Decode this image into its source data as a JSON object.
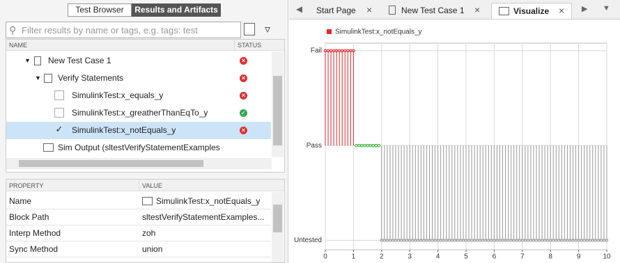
{
  "left": {
    "tabs": [
      "Test Browser",
      "Results and Artifacts"
    ],
    "search_placeholder": "Filter results by name or tags, e.g. tags: test",
    "tree": {
      "columns": [
        "NAME",
        "STATUS"
      ],
      "rows": [
        "New Test Case 1",
        "Verify Statements",
        "SimulinkTest:x_equals_y",
        "SimulinkTest:x_greatherThanEqTo_y",
        "SimulinkTest:x_notEquals_y",
        "Sim Output (sltestVerifyStatementExamples"
      ]
    },
    "properties": {
      "columns": [
        "PROPERTY",
        "VALUE"
      ],
      "rows": [
        [
          "Name",
          "SimulinkTest:x_notEquals_y"
        ],
        [
          "Block Path",
          "sltestVerifyStatementExamples..."
        ],
        [
          "Interp Method",
          "zoh"
        ],
        [
          "Sync Method",
          "union"
        ]
      ]
    }
  },
  "right": {
    "tabs": [
      "Start Page",
      "New Test Case 1",
      "Visualize"
    ]
  },
  "chart_data": {
    "type": "stem",
    "baseline": 1,
    "series": [
      {
        "name": "SimulinkTest:x_notEquals_y",
        "color": "#e8262b",
        "x": [
          0,
          0.1,
          0.2,
          0.3,
          0.4,
          0.5,
          0.6,
          0.7,
          0.8,
          0.9,
          1
        ],
        "values": [
          2,
          2,
          2,
          2,
          2,
          2,
          2,
          2,
          2,
          2,
          2
        ]
      },
      {
        "color": "#2db52d",
        "x": [
          1.1,
          1.2,
          1.3,
          1.4,
          1.5,
          1.6,
          1.7,
          1.8,
          1.9
        ],
        "values": [
          1,
          1,
          1,
          1,
          1,
          1,
          1,
          1,
          1
        ]
      },
      {
        "color": "#9a9a9a",
        "x": [
          2,
          2.1,
          2.2,
          2.3,
          2.4,
          2.5,
          2.6,
          2.7,
          2.8,
          2.9,
          3,
          3.1,
          3.2,
          3.3,
          3.4,
          3.5,
          3.6,
          3.7,
          3.8,
          3.9,
          4,
          4.1,
          4.2,
          4.3,
          4.4,
          4.5,
          4.6,
          4.7,
          4.8,
          4.9,
          5,
          5.1,
          5.2,
          5.3,
          5.4,
          5.5,
          5.6,
          5.7,
          5.8,
          5.9,
          6,
          6.1,
          6.2,
          6.3,
          6.4,
          6.5,
          6.6,
          6.7,
          6.8,
          6.9,
          7,
          7.1,
          7.2,
          7.3,
          7.4,
          7.5,
          7.6,
          7.7,
          7.8,
          7.9,
          8,
          8.1,
          8.2,
          8.3,
          8.4,
          8.5,
          8.6,
          8.7,
          8.8,
          8.9,
          9,
          9.1,
          9.2,
          9.3,
          9.4,
          9.5,
          9.6,
          9.7,
          9.8,
          9.9,
          10
        ],
        "values": [
          0,
          0,
          0,
          0,
          0,
          0,
          0,
          0,
          0,
          0,
          0,
          0,
          0,
          0,
          0,
          0,
          0,
          0,
          0,
          0,
          0,
          0,
          0,
          0,
          0,
          0,
          0,
          0,
          0,
          0,
          0,
          0,
          0,
          0,
          0,
          0,
          0,
          0,
          0,
          0,
          0,
          0,
          0,
          0,
          0,
          0,
          0,
          0,
          0,
          0,
          0,
          0,
          0,
          0,
          0,
          0,
          0,
          0,
          0,
          0,
          0,
          0,
          0,
          0,
          0,
          0,
          0,
          0,
          0,
          0,
          0,
          0,
          0,
          0,
          0,
          0,
          0,
          0,
          0,
          0,
          0
        ]
      }
    ],
    "xlim": [
      0,
      10
    ],
    "xticks": [
      0,
      1,
      2,
      3,
      4,
      5,
      6,
      7,
      8,
      9,
      10
    ],
    "ylim": [
      -0.1,
      2.08
    ],
    "yticks": [
      {
        "value": 0,
        "label": "Untested"
      },
      {
        "value": 1,
        "label": "Pass"
      },
      {
        "value": 2,
        "label": "Fail"
      }
    ],
    "grid": true
  }
}
